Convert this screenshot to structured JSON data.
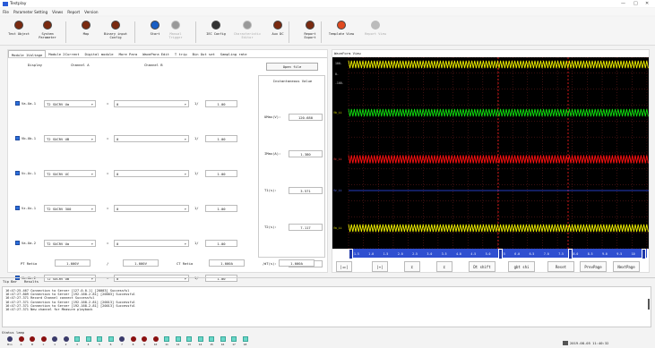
{
  "window": {
    "title": "Testplay",
    "controls": [
      "—",
      "□",
      "✕"
    ]
  },
  "menu": [
    "File",
    "Parameter Setting",
    "Views",
    "Report",
    "Version"
  ],
  "toolbar": [
    {
      "label": "Test Object",
      "icon": "target-icon",
      "enabled": true
    },
    {
      "label": "System\nParameter",
      "icon": "settings-icon",
      "enabled": true
    },
    {
      "label": "Map",
      "icon": "map-icon",
      "enabled": true
    },
    {
      "label": "Binary input\nConfig",
      "icon": "binary-icon",
      "enabled": true
    },
    {
      "label": "Start",
      "icon": "play-icon",
      "enabled": true
    },
    {
      "label": "Manual\nTrigger",
      "icon": "trigger-icon",
      "enabled": false
    },
    {
      "label": "IEC Config",
      "icon": "gear-icon",
      "enabled": true
    },
    {
      "label": "Characteristic\nEditor",
      "icon": "chart-editor-icon",
      "enabled": false
    },
    {
      "label": "Aux DC",
      "icon": "power-icon",
      "enabled": true
    },
    {
      "label": "Report\nExport",
      "icon": "export-icon",
      "enabled": true
    },
    {
      "label": "Template View",
      "icon": "template-icon",
      "enabled": true
    },
    {
      "label": "Report View",
      "icon": "report-view-icon",
      "enabled": false
    }
  ],
  "tabs": [
    "Module 1Voltage",
    "Module 2Current",
    "Digital module",
    "More Para",
    "WavePara Edit",
    "T trip",
    "Bin Out set",
    "Sampling rate"
  ],
  "headers": {
    "display": "Display",
    "channel_a": "Channel A",
    "channel_b": "Channel B"
  },
  "open_file": "Open file",
  "channels": [
    {
      "label": "Va-Ua-1",
      "a": "T2 SUCRV Ua",
      "eq": "=",
      "b": "0",
      "mult": "1/",
      "val": "1.00"
    },
    {
      "label": "Vb-Ub-1",
      "a": "T2 SUCRV UB",
      "eq": "=",
      "b": "0",
      "mult": "1/",
      "val": "1.00"
    },
    {
      "label": "Vc-Uc-1",
      "a": "T2 SUCRV UC",
      "eq": "=",
      "b": "0",
      "mult": "1/",
      "val": "1.00"
    },
    {
      "label": "Vz-Ux-1",
      "a": "T2 SUCRV 3U0",
      "eq": "=",
      "b": "0",
      "mult": "1/",
      "val": "1.00"
    },
    {
      "label": "Va-Ua-2",
      "a": "T2 SUCRV Ua",
      "eq": "=",
      "b": "0",
      "mult": "1/",
      "val": "1.00"
    },
    {
      "label": "Vb-Ub-2",
      "a": "T2 SUCRV UB",
      "eq": "=",
      "b": "0",
      "mult": "1/",
      "val": "1.00"
    }
  ],
  "instantaneous": {
    "title": "Instantaneous Value",
    "items": [
      {
        "label": "UMax(V):",
        "value": "120.680"
      },
      {
        "label": "IMax(A):",
        "value": "1.380"
      },
      {
        "label": "T1(s):",
        "value": "3.571"
      },
      {
        "label": "T2(s):",
        "value": "7.117"
      },
      {
        "label": "dT(s):",
        "value": "3.547"
      }
    ]
  },
  "ratios": {
    "pt_label": "PT Ratio",
    "pt_primary": "1.000V",
    "slash": "/",
    "pt_secondary": "1.000V",
    "ct_label": "CT Ratio",
    "ct_primary": "1.000A",
    "ct_secondary": "1.000A"
  },
  "wave": {
    "title": "WaveForm View",
    "y_labels": [
      "100-",
      "0-",
      "-100-"
    ],
    "trace_labels": [
      "Vb_ii",
      "Vc_ii",
      "Vz_ii",
      "Va_ii"
    ],
    "x_ticks": [
      "1.5",
      "1.0",
      "1.5",
      "2.0",
      "2.5",
      "3.0",
      "3.5",
      "4.0",
      "4.5",
      "5.0",
      "5.5",
      "6.0",
      "6.5",
      "7.0",
      "7.5",
      "8.0",
      "8.5",
      "9.0",
      "9.5",
      "10"
    ],
    "buttons": [
      "|◂▸|",
      "|↔|",
      "⌶",
      "⌶",
      "Dt shift",
      "gbt shi",
      "Reset",
      "PrevPage",
      "NextPage"
    ]
  },
  "tip_tabs": [
    "Tip Bar",
    "Results"
  ],
  "log": [
    "16:47:25.467    Connection to Server [127.0.0.1] [20003] Successful",
    "16:47:27.809    Connection to Server [192.168.2.81] [20003] Successful",
    "16:47:27.371    Record Channel connect Successful",
    "16:47:27.371    Connection to Server [192.168.2.81] [20013] Successful",
    "16:47:27.371    Connection to Server [192.168.2.81] [20013] Successful",
    "16:47:27.371    New channel for Measure playback"
  ],
  "status": {
    "label": "Status lamp",
    "clock": "2019-08-05 11:40:32"
  },
  "lamps": [
    {
      "n": "Bin",
      "c": "#3a3a6a",
      "shape": "round"
    },
    {
      "n": "A",
      "c": "#8a1010",
      "shape": "round"
    },
    {
      "n": "B",
      "c": "#8a1010",
      "shape": "round"
    },
    {
      "n": "C",
      "c": "#8a1010",
      "shape": "round"
    },
    {
      "n": "1",
      "c": "#3a3a6a",
      "shape": "round"
    },
    {
      "n": "2",
      "c": "#3a3a6a",
      "shape": "round"
    },
    {
      "n": "3",
      "c": "#6ad7c8",
      "shape": "square"
    },
    {
      "n": "4",
      "c": "#6ad7c8",
      "shape": "square"
    },
    {
      "n": "5",
      "c": "#6ad7c8",
      "shape": "square"
    },
    {
      "n": "6",
      "c": "#6ad7c8",
      "shape": "square"
    },
    {
      "n": "7",
      "c": "#3a3a6a",
      "shape": "round"
    },
    {
      "n": "8",
      "c": "#8a1010",
      "shape": "round"
    },
    {
      "n": "9",
      "c": "#8a1010",
      "shape": "round"
    },
    {
      "n": "10",
      "c": "#8a1010",
      "shape": "round"
    },
    {
      "n": "11",
      "c": "#6ad7c8",
      "shape": "square"
    },
    {
      "n": "12",
      "c": "#6ad7c8",
      "shape": "square"
    },
    {
      "n": "13",
      "c": "#6ad7c8",
      "shape": "square"
    },
    {
      "n": "14",
      "c": "#6ad7c8",
      "shape": "square"
    },
    {
      "n": "15",
      "c": "#6ad7c8",
      "shape": "square"
    },
    {
      "n": "16",
      "c": "#6ad7c8",
      "shape": "square"
    },
    {
      "n": "17",
      "c": "#6ad7c8",
      "shape": "square"
    },
    {
      "n": "18",
      "c": "#6ad7c8",
      "shape": "square"
    }
  ],
  "colors": {
    "wave_yellow": "#f0f000",
    "wave_green": "#10e010",
    "wave_red": "#ff1010",
    "wave_blue": "#3050ff",
    "grid": "#7a2020",
    "bg": "#000000"
  }
}
